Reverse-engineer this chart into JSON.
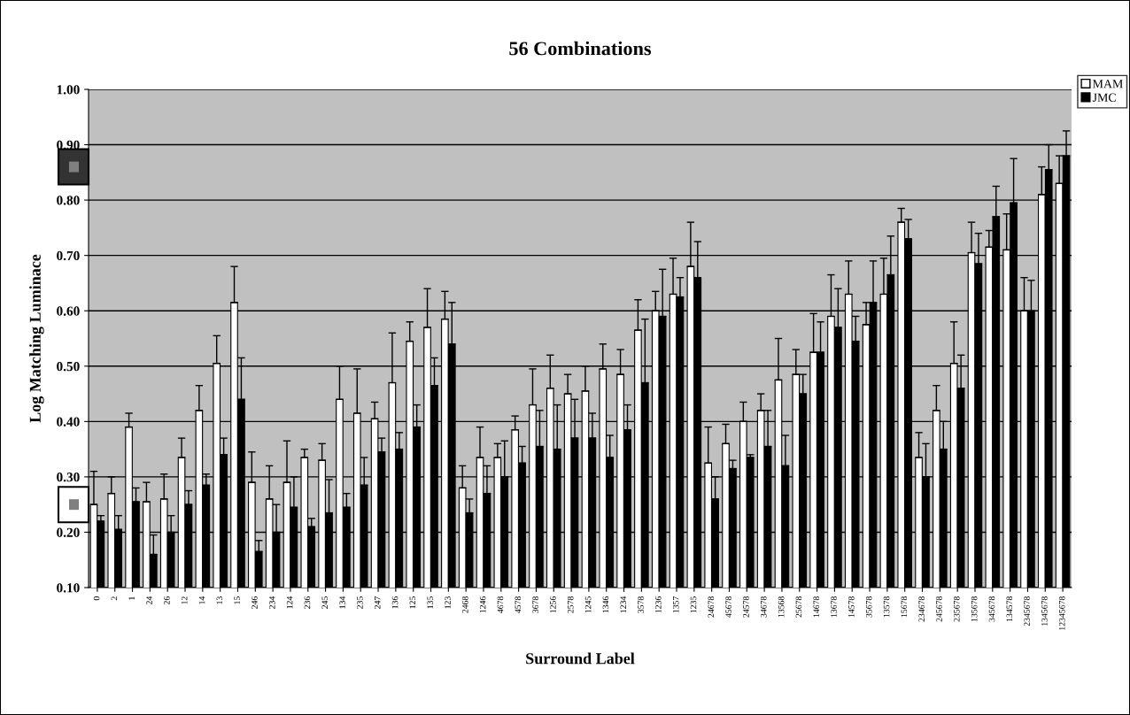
{
  "chart_data": {
    "type": "bar",
    "title": "56 Combinations",
    "xlabel": "Surround Label",
    "ylabel": "Log Matching Luminace",
    "categories": [
      "0",
      "2",
      "1",
      "24",
      "26",
      "12",
      "14",
      "13",
      "15",
      "246",
      "234",
      "124",
      "236",
      "245",
      "134",
      "235",
      "247",
      "136",
      "125",
      "135",
      "123",
      "2468",
      "1246",
      "4678",
      "4578",
      "3678",
      "1256",
      "2578",
      "1245",
      "1346",
      "1234",
      "3578",
      "1236",
      "1357",
      "1235",
      "24678",
      "45678",
      "24578",
      "34678",
      "13568",
      "25678",
      "14678",
      "13678",
      "14578",
      "35678",
      "13578",
      "15678",
      "234678",
      "245678",
      "235678",
      "135678",
      "345678",
      "134578",
      "2345678",
      "1345678",
      "12345678"
    ],
    "series": [
      {
        "name": "MAM",
        "color": "#ffffff",
        "values": [
          0.25,
          0.27,
          0.39,
          0.255,
          0.26,
          0.335,
          0.42,
          0.505,
          0.615,
          0.29,
          0.26,
          0.29,
          0.335,
          0.33,
          0.44,
          0.415,
          0.405,
          0.47,
          0.545,
          0.57,
          0.585,
          0.28,
          0.335,
          0.335,
          0.385,
          0.43,
          0.46,
          0.45,
          0.455,
          0.495,
          0.485,
          0.565,
          0.6,
          0.63,
          0.68,
          0.325,
          0.36,
          0.4,
          0.42,
          0.475,
          0.485,
          0.525,
          0.59,
          0.63,
          0.575,
          0.63,
          0.76,
          0.335,
          0.42,
          0.505,
          0.705,
          0.715,
          0.71,
          0.6,
          0.81,
          0.83
        ],
        "errors": [
          [
            0.25,
            0.31
          ],
          [
            0.27,
            0.3
          ],
          [
            0.39,
            0.415
          ],
          [
            0.255,
            0.29
          ],
          [
            0.26,
            0.305
          ],
          [
            0.335,
            0.37
          ],
          [
            0.42,
            0.465
          ],
          [
            0.505,
            0.555
          ],
          [
            0.615,
            0.68
          ],
          [
            0.29,
            0.345
          ],
          [
            0.26,
            0.32
          ],
          [
            0.29,
            0.365
          ],
          [
            0.335,
            0.35
          ],
          [
            0.33,
            0.36
          ],
          [
            0.44,
            0.5
          ],
          [
            0.415,
            0.495
          ],
          [
            0.405,
            0.435
          ],
          [
            0.47,
            0.56
          ],
          [
            0.545,
            0.58
          ],
          [
            0.57,
            0.64
          ],
          [
            0.585,
            0.635
          ],
          [
            0.28,
            0.32
          ],
          [
            0.335,
            0.39
          ],
          [
            0.335,
            0.36
          ],
          [
            0.385,
            0.41
          ],
          [
            0.43,
            0.495
          ],
          [
            0.46,
            0.52
          ],
          [
            0.45,
            0.485
          ],
          [
            0.455,
            0.5
          ],
          [
            0.495,
            0.54
          ],
          [
            0.485,
            0.53
          ],
          [
            0.565,
            0.62
          ],
          [
            0.6,
            0.635
          ],
          [
            0.63,
            0.695
          ],
          [
            0.68,
            0.76
          ],
          [
            0.325,
            0.39
          ],
          [
            0.36,
            0.395
          ],
          [
            0.4,
            0.435
          ],
          [
            0.42,
            0.45
          ],
          [
            0.475,
            0.55
          ],
          [
            0.485,
            0.53
          ],
          [
            0.525,
            0.595
          ],
          [
            0.59,
            0.665
          ],
          [
            0.63,
            0.69
          ],
          [
            0.575,
            0.615
          ],
          [
            0.63,
            0.695
          ],
          [
            0.76,
            0.785
          ],
          [
            0.335,
            0.38
          ],
          [
            0.42,
            0.465
          ],
          [
            0.505,
            0.58
          ],
          [
            0.705,
            0.76
          ],
          [
            0.715,
            0.745
          ],
          [
            0.71,
            0.775
          ],
          [
            0.6,
            0.66
          ],
          [
            0.81,
            0.86
          ],
          [
            0.83,
            0.88
          ]
        ]
      },
      {
        "name": "JMC",
        "color": "#000000",
        "values": [
          0.22,
          0.205,
          0.255,
          0.16,
          0.2,
          0.25,
          0.285,
          0.34,
          0.44,
          0.165,
          0.2,
          0.245,
          0.21,
          0.235,
          0.245,
          0.285,
          0.345,
          0.35,
          0.39,
          0.465,
          0.54,
          0.235,
          0.27,
          0.3,
          0.325,
          0.355,
          0.35,
          0.37,
          0.37,
          0.335,
          0.385,
          0.47,
          0.59,
          0.625,
          0.66,
          0.26,
          0.315,
          0.335,
          0.355,
          0.32,
          0.45,
          0.525,
          0.57,
          0.545,
          0.615,
          0.665,
          0.73,
          0.3,
          0.35,
          0.46,
          0.685,
          0.77,
          0.795,
          0.6,
          0.855,
          0.88
        ],
        "errors": [
          [
            0.22,
            0.23
          ],
          [
            0.205,
            0.23
          ],
          [
            0.255,
            0.28
          ],
          [
            0.16,
            0.195
          ],
          [
            0.2,
            0.23
          ],
          [
            0.25,
            0.275
          ],
          [
            0.285,
            0.305
          ],
          [
            0.34,
            0.37
          ],
          [
            0.44,
            0.515
          ],
          [
            0.165,
            0.185
          ],
          [
            0.2,
            0.25
          ],
          [
            0.245,
            0.3
          ],
          [
            0.21,
            0.225
          ],
          [
            0.235,
            0.295
          ],
          [
            0.245,
            0.27
          ],
          [
            0.285,
            0.335
          ],
          [
            0.345,
            0.37
          ],
          [
            0.35,
            0.38
          ],
          [
            0.39,
            0.43
          ],
          [
            0.465,
            0.515
          ],
          [
            0.54,
            0.615
          ],
          [
            0.235,
            0.26
          ],
          [
            0.27,
            0.32
          ],
          [
            0.3,
            0.365
          ],
          [
            0.325,
            0.355
          ],
          [
            0.355,
            0.42
          ],
          [
            0.35,
            0.43
          ],
          [
            0.37,
            0.44
          ],
          [
            0.37,
            0.415
          ],
          [
            0.335,
            0.375
          ],
          [
            0.385,
            0.43
          ],
          [
            0.47,
            0.585
          ],
          [
            0.59,
            0.675
          ],
          [
            0.625,
            0.66
          ],
          [
            0.66,
            0.725
          ],
          [
            0.26,
            0.3
          ],
          [
            0.315,
            0.33
          ],
          [
            0.335,
            0.34
          ],
          [
            0.355,
            0.42
          ],
          [
            0.32,
            0.375
          ],
          [
            0.45,
            0.485
          ],
          [
            0.525,
            0.58
          ],
          [
            0.57,
            0.64
          ],
          [
            0.545,
            0.59
          ],
          [
            0.615,
            0.69
          ],
          [
            0.665,
            0.735
          ],
          [
            0.73,
            0.765
          ],
          [
            0.3,
            0.36
          ],
          [
            0.35,
            0.4
          ],
          [
            0.46,
            0.52
          ],
          [
            0.685,
            0.74
          ],
          [
            0.77,
            0.825
          ],
          [
            0.795,
            0.875
          ],
          [
            0.6,
            0.655
          ],
          [
            0.855,
            0.9
          ],
          [
            0.88,
            0.925
          ]
        ]
      }
    ],
    "ylim": [
      0.1,
      1.0
    ],
    "yticks": [
      {
        "value": 0.1,
        "label": "0.10"
      },
      {
        "value": 0.2,
        "label": "0.20"
      },
      {
        "value": 0.3,
        "label": "0.30"
      },
      {
        "value": 0.4,
        "label": "0.40"
      },
      {
        "value": 0.5,
        "label": "0.50"
      },
      {
        "value": 0.6,
        "label": "0.60"
      },
      {
        "value": 0.7,
        "label": "0.70"
      },
      {
        "value": 0.8,
        "label": "0.80"
      },
      {
        "value": 0.9,
        "label": "0.90"
      },
      {
        "value": 1.0,
        "label": "1.00"
      }
    ],
    "grid": "y",
    "legend": "top right"
  }
}
